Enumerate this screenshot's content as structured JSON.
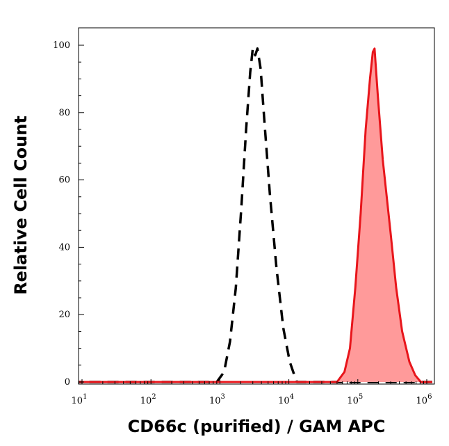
{
  "chart_data": {
    "type": "area",
    "title": "",
    "xlabel": "CD66c (purified) / GAM APC",
    "ylabel": "Relative Cell Count",
    "x_scale": "log",
    "xlim": [
      10,
      1000000
    ],
    "ylim": [
      0,
      100
    ],
    "x_ticks": [
      {
        "value": 10,
        "base": "10",
        "exp": "1"
      },
      {
        "value": 100,
        "base": "10",
        "exp": "2"
      },
      {
        "value": 1000,
        "base": "10",
        "exp": "3"
      },
      {
        "value": 10000,
        "base": "10",
        "exp": "4"
      },
      {
        "value": 100000,
        "base": "10",
        "exp": "5"
      },
      {
        "value": 1000000,
        "base": "10",
        "exp": "6"
      }
    ],
    "y_ticks": [
      0,
      20,
      40,
      60,
      80,
      100
    ],
    "grid": false,
    "legend": "none",
    "series": [
      {
        "style": "dashed",
        "color": "#000000",
        "fill": "none",
        "points": [
          [
            7,
            0
          ],
          [
            900,
            0
          ],
          [
            1150,
            3
          ],
          [
            1400,
            12
          ],
          [
            1700,
            28
          ],
          [
            2050,
            52
          ],
          [
            2400,
            75
          ],
          [
            2750,
            92
          ],
          [
            3000,
            99
          ],
          [
            3250,
            97
          ],
          [
            3500,
            99
          ],
          [
            3900,
            93
          ],
          [
            4400,
            78
          ],
          [
            5300,
            56
          ],
          [
            6600,
            34
          ],
          [
            8300,
            16
          ],
          [
            10300,
            6
          ],
          [
            12000,
            2
          ],
          [
            13000,
            0
          ],
          [
            1200000,
            0
          ]
        ]
      },
      {
        "style": "solid",
        "color": "#e8151b",
        "fill": "#ff9a9a",
        "points": [
          [
            7,
            0
          ],
          [
            50000,
            0
          ],
          [
            64000,
            3
          ],
          [
            77000,
            10
          ],
          [
            92000,
            28
          ],
          [
            110000,
            50
          ],
          [
            130000,
            75
          ],
          [
            150000,
            90
          ],
          [
            165000,
            98
          ],
          [
            175000,
            99
          ],
          [
            195000,
            85
          ],
          [
            230000,
            66
          ],
          [
            300000,
            44
          ],
          [
            360000,
            28
          ],
          [
            440000,
            15
          ],
          [
            560000,
            6
          ],
          [
            680000,
            2
          ],
          [
            820000,
            0
          ],
          [
            1200000,
            0
          ]
        ]
      }
    ]
  }
}
